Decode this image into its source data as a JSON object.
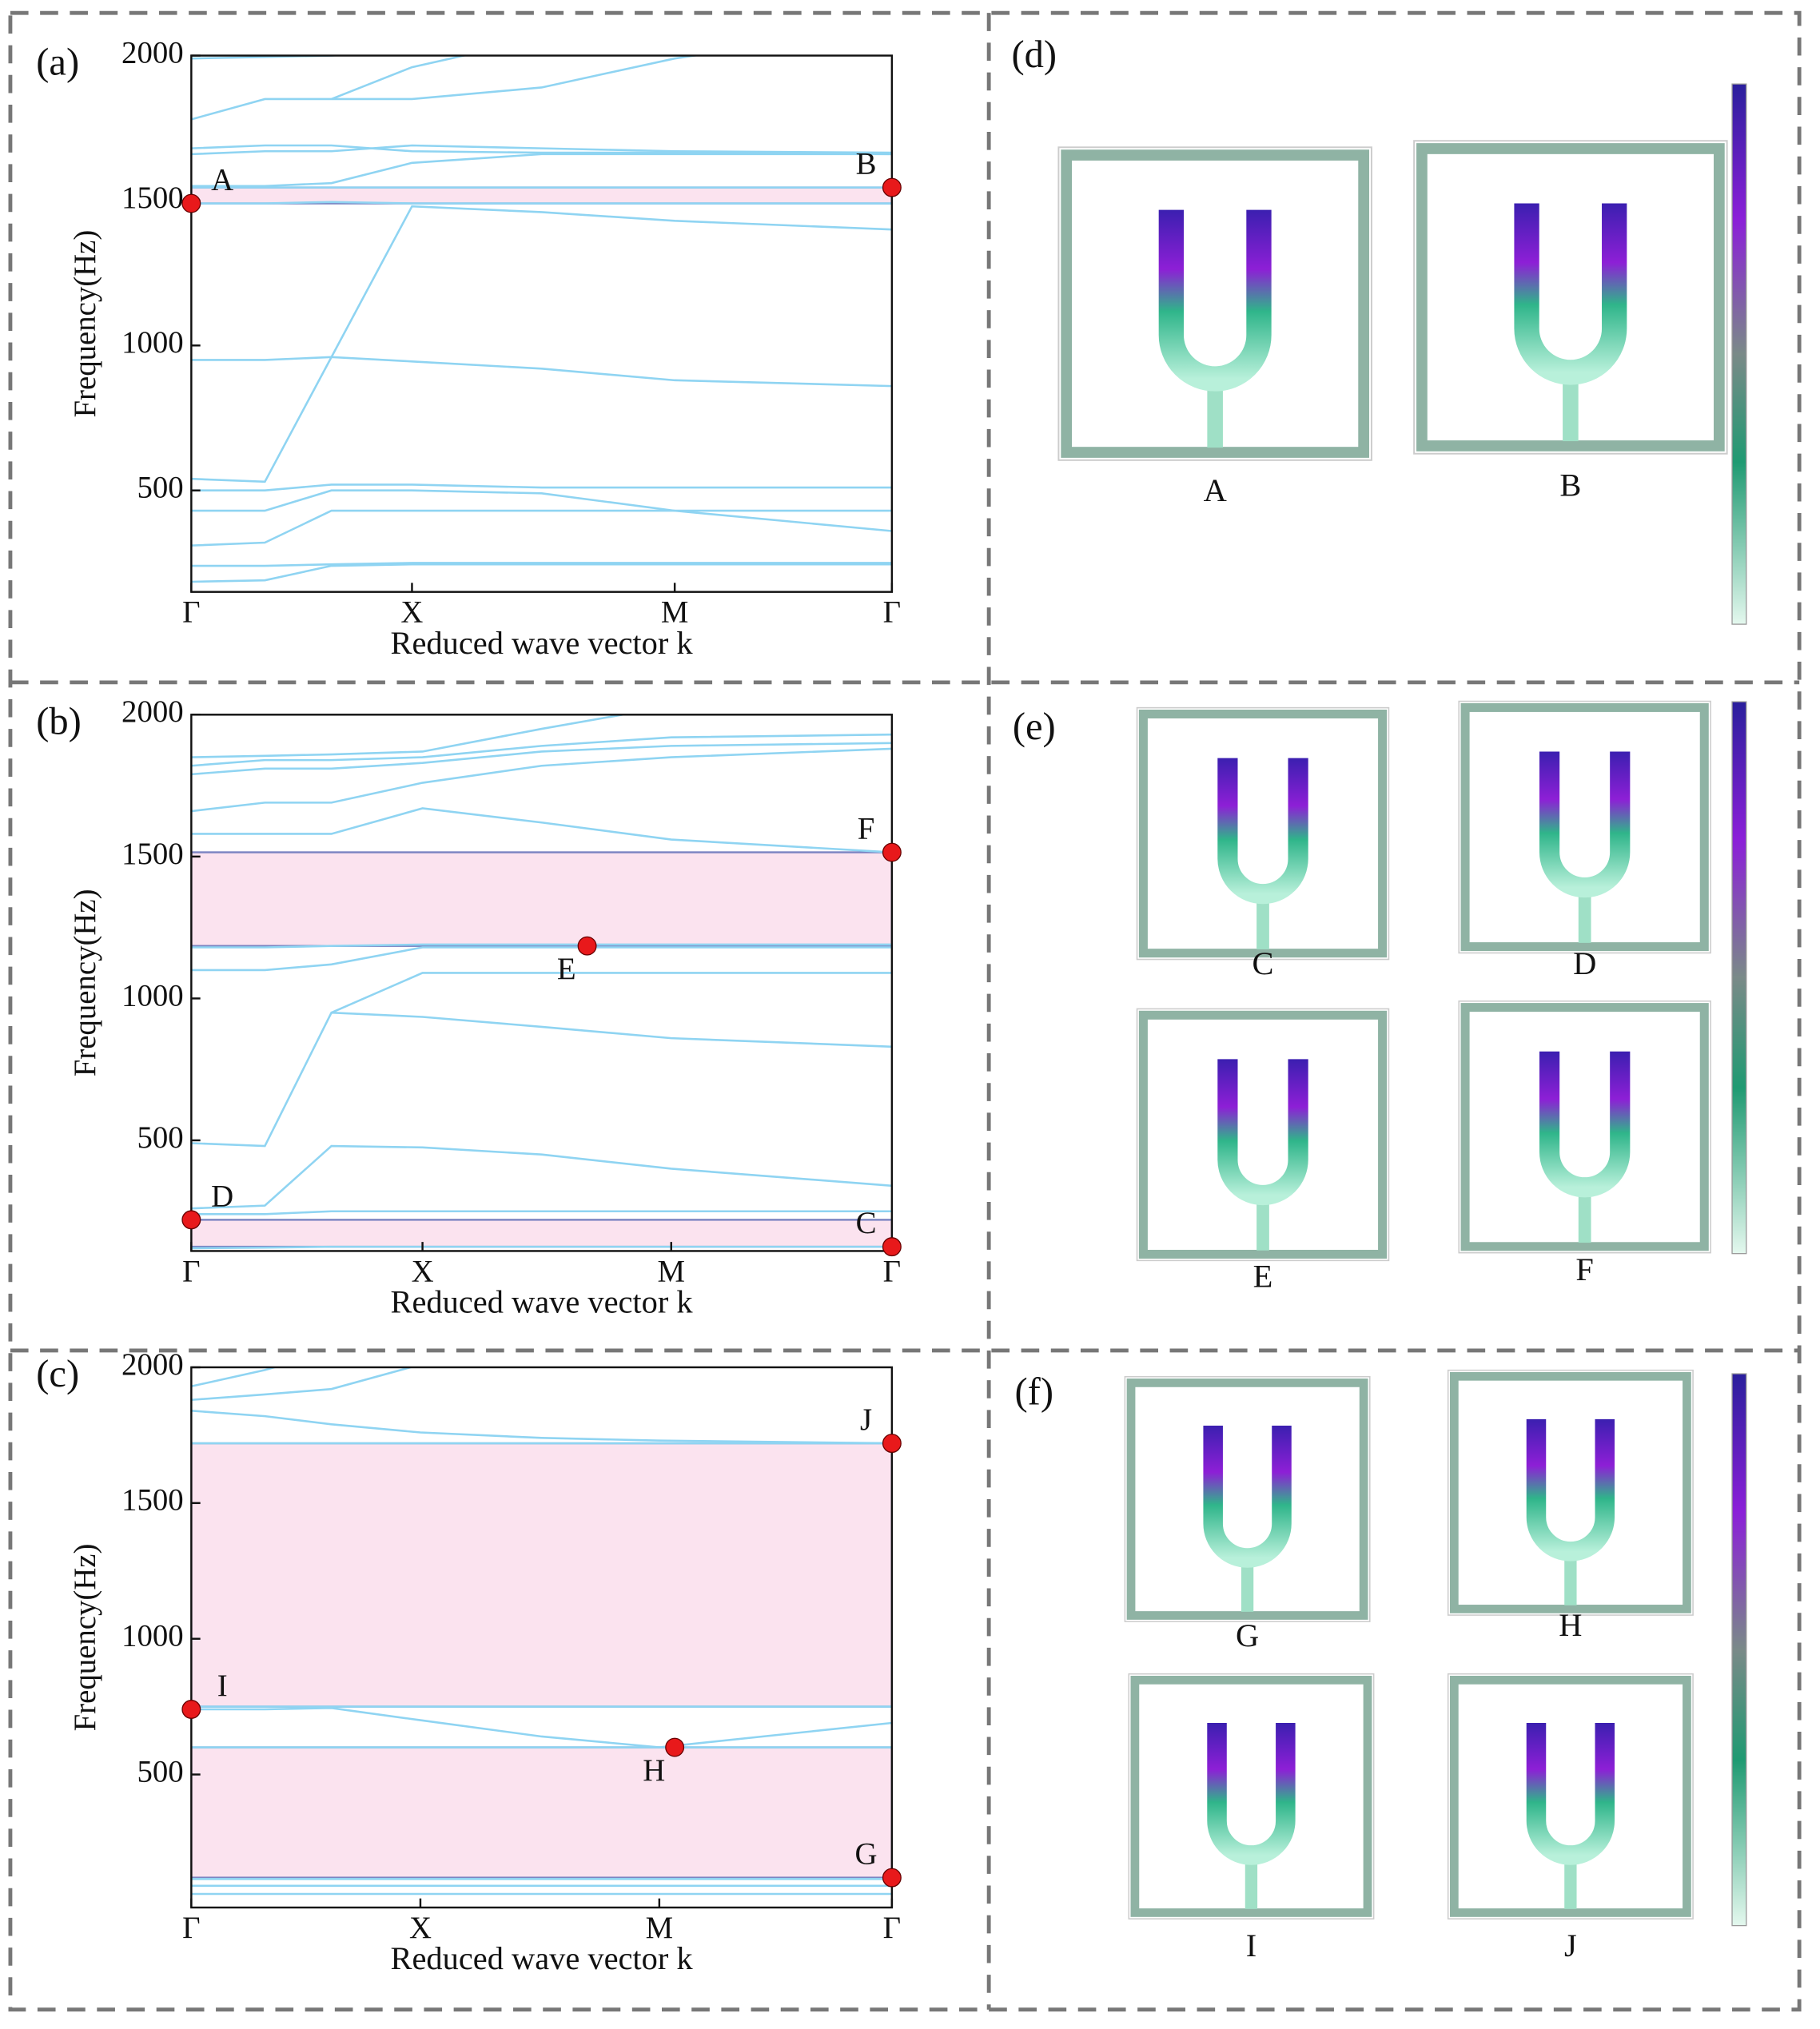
{
  "chart_data": [
    {
      "type": "line",
      "panel": "(a)",
      "y_label": "Frequency(Hz)",
      "x_label": "Reduced wave vector k",
      "line_color": "#8fd4f2",
      "gap_color": "#fbe3ef",
      "gap_edge_color": "#7b84c2",
      "point_color": "#e8191b",
      "xlim": [
        0,
        1
      ],
      "xticks": [
        {
          "value": 0,
          "label": "Γ"
        },
        {
          "value": 0.315,
          "label": "X"
        },
        {
          "value": 0.69,
          "label": "M"
        },
        {
          "value": 1,
          "label": "Γ"
        }
      ],
      "ylim": [
        150,
        2000
      ],
      "yticks": [
        500,
        1000,
        1500,
        2000
      ],
      "x": [
        0,
        0.105,
        0.2,
        0.315,
        0.5,
        0.69,
        1
      ],
      "series": [
        {
          "values": [
            185,
            190,
            240,
            245,
            245,
            245,
            245
          ]
        },
        {
          "values": [
            240,
            240,
            245,
            250,
            250,
            250,
            250
          ]
        },
        {
          "values": [
            310,
            320,
            430,
            430,
            430,
            430,
            430
          ]
        },
        {
          "values": [
            430,
            430,
            500,
            500,
            490,
            430,
            360
          ]
        },
        {
          "values": [
            500,
            500,
            520,
            520,
            510,
            510,
            510
          ]
        },
        {
          "values": [
            540,
            530,
            960,
            945,
            920,
            880,
            860
          ]
        },
        {
          "values": [
            950,
            950,
            960,
            null,
            null,
            null,
            null
          ]
        },
        {
          "values": [
            null,
            null,
            960,
            1480,
            1460,
            1430,
            1400
          ]
        },
        {
          "values": [
            1490,
            1490,
            1495,
            1490,
            1490,
            1490,
            1490
          ]
        },
        {
          "values": [
            1545,
            1545,
            1545,
            1545,
            1545,
            1545,
            1545
          ]
        },
        {
          "values": [
            1550,
            1550,
            1560,
            1630,
            1660,
            1660,
            1660
          ]
        },
        {
          "values": [
            1660,
            1670,
            1670,
            1690,
            1680,
            1670,
            1665
          ]
        },
        {
          "values": [
            1680,
            1690,
            1690,
            1670,
            1665,
            1665,
            1660
          ]
        },
        {
          "values": [
            1780,
            1850,
            1850,
            1850,
            1890,
            1990,
            2100
          ]
        },
        {
          "values": [
            null,
            null,
            1850,
            1960,
            2060,
            null,
            null
          ]
        },
        {
          "values": [
            1990,
            1995,
            2000,
            2020,
            null,
            null,
            null
          ]
        }
      ],
      "gaps": [
        {
          "from": 1490,
          "to": 1545
        }
      ],
      "points": [
        {
          "label": "A",
          "x": 0,
          "value": 1490
        },
        {
          "label": "B",
          "x": 1,
          "value": 1545
        }
      ]
    },
    {
      "type": "line",
      "panel": "(b)",
      "y_label": "Frequency(Hz)",
      "x_label": "Reduced wave vector k",
      "line_color": "#8fd4f2",
      "gap_color": "#fbe3ef",
      "gap_edge_color": "#7b84c2",
      "point_color": "#e8191b",
      "xlim": [
        0,
        1
      ],
      "xticks": [
        {
          "value": 0,
          "label": "Γ"
        },
        {
          "value": 0.33,
          "label": "X"
        },
        {
          "value": 0.685,
          "label": "M"
        },
        {
          "value": 1,
          "label": "Γ"
        }
      ],
      "ylim": [
        110,
        2000
      ],
      "yticks": [
        500,
        1000,
        1500,
        2000
      ],
      "x": [
        0,
        0.105,
        0.2,
        0.33,
        0.5,
        0.685,
        1
      ],
      "series": [
        {
          "values": [
            120,
            122,
            125,
            125,
            125,
            125,
            125
          ]
        },
        {
          "values": [
            240,
            240,
            250,
            250,
            250,
            250,
            250
          ]
        },
        {
          "values": [
            260,
            270,
            480,
            475,
            450,
            400,
            340
          ]
        },
        {
          "values": [
            490,
            480,
            950,
            935,
            900,
            860,
            830
          ]
        },
        {
          "values": [
            null,
            null,
            950,
            1090,
            1090,
            1090,
            1090
          ]
        },
        {
          "values": [
            1100,
            1100,
            1120,
            1180,
            1180,
            1180,
            1180
          ]
        },
        {
          "values": [
            1180,
            1180,
            1185,
            1190,
            1190,
            1190,
            1190
          ]
        },
        {
          "values": [
            1580,
            1580,
            1580,
            1670,
            1620,
            1560,
            1515
          ]
        },
        {
          "values": [
            1660,
            1690,
            1690,
            1760,
            1820,
            1850,
            1880
          ]
        },
        {
          "values": [
            1790,
            1810,
            1810,
            1830,
            1870,
            1890,
            1900
          ]
        },
        {
          "values": [
            1820,
            1840,
            1840,
            1850,
            1890,
            1920,
            1930
          ]
        },
        {
          "values": [
            1850,
            1855,
            1860,
            1870,
            1950,
            2030,
            null
          ]
        }
      ],
      "gaps": [
        {
          "from": 1185,
          "to": 1515
        },
        {
          "from": 125,
          "to": 220
        }
      ],
      "points": [
        {
          "label": "D",
          "x": 0,
          "value": 220
        },
        {
          "label": "C",
          "x": 1,
          "value": 125
        },
        {
          "label": "E",
          "x": 0.565,
          "value": 1185
        },
        {
          "label": "F",
          "x": 1,
          "value": 1515
        }
      ]
    },
    {
      "type": "line",
      "panel": "(c)",
      "y_label": "Frequency(Hz)",
      "x_label": "Reduced wave vector k",
      "line_color": "#8fd4f2",
      "gap_color": "#fbe3ef",
      "gap_edge_color": "#7b84c2",
      "point_color": "#e8191b",
      "xlim": [
        0,
        1
      ],
      "xticks": [
        {
          "value": 0,
          "label": "Γ"
        },
        {
          "value": 0.327,
          "label": "X"
        },
        {
          "value": 0.668,
          "label": "M"
        },
        {
          "value": 1,
          "label": "Γ"
        }
      ],
      "ylim": [
        10,
        2000
      ],
      "yticks": [
        500,
        1000,
        1500,
        2000
      ],
      "x": [
        0,
        0.105,
        0.2,
        0.327,
        0.5,
        0.668,
        1
      ],
      "series": [
        {
          "values": [
            60,
            60,
            60,
            60,
            60,
            60,
            60
          ]
        },
        {
          "values": [
            90,
            90,
            90,
            90,
            90,
            90,
            90
          ]
        },
        {
          "values": [
            115,
            115,
            115,
            115,
            115,
            115,
            115
          ]
        },
        {
          "values": [
            600,
            600,
            600,
            600,
            600,
            600,
            600
          ]
        },
        {
          "values": [
            740,
            740,
            745,
            700,
            640,
            600,
            690
          ]
        },
        {
          "values": [
            750,
            750,
            750,
            750,
            750,
            750,
            750
          ]
        },
        {
          "values": [
            1720,
            1720,
            1720,
            1720,
            1720,
            1720,
            1720
          ]
        },
        {
          "values": [
            1840,
            1820,
            1790,
            1760,
            1740,
            1730,
            1720
          ]
        },
        {
          "values": [
            1880,
            1900,
            1920,
            2010,
            null,
            null,
            null
          ]
        },
        {
          "values": [
            1930,
            1990,
            2060,
            null,
            null,
            null,
            null
          ]
        }
      ],
      "gaps": [
        {
          "from": 120,
          "to": 600
        },
        {
          "from": 750,
          "to": 1720
        }
      ],
      "points": [
        {
          "label": "G",
          "x": 1,
          "value": 120
        },
        {
          "label": "H",
          "x": 0.69,
          "value": 600
        },
        {
          "label": "I",
          "x": 0,
          "value": 740
        },
        {
          "label": "J",
          "x": 1,
          "value": 1720
        }
      ]
    }
  ],
  "mode_panels": [
    {
      "panel": "(d)",
      "modes": [
        "A",
        "B"
      ]
    },
    {
      "panel": "(e)",
      "modes": [
        "C",
        "D",
        "E",
        "F"
      ]
    },
    {
      "panel": "(f)",
      "modes": [
        "G",
        "H",
        "I",
        "J"
      ]
    }
  ]
}
